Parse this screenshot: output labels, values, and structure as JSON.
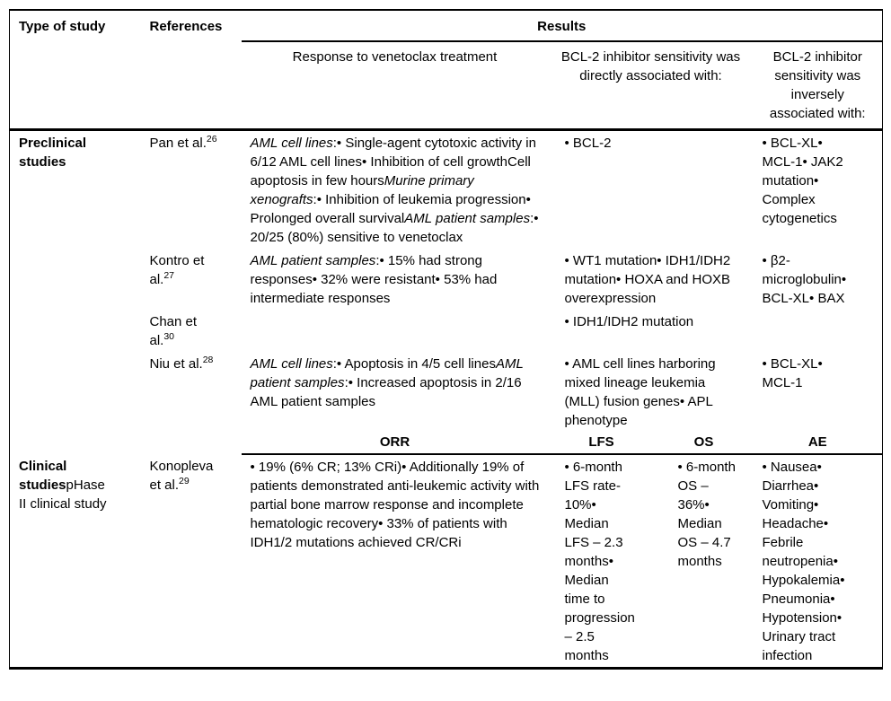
{
  "page": {
    "background_color": "#ffffff",
    "text_color": "#000000",
    "border_color": "#000000"
  },
  "table": {
    "header": {
      "type_of_study": "Type of study",
      "references": "References",
      "results": "Results",
      "response_col": "Response to venetoclax treatment",
      "direct_col": "BCL-2 inhibitor sensitivity was directly associated with:",
      "inverse_col": "BCL-2 inhibitor sensitivity was inversely associated with:"
    },
    "rows": [
      {
        "study": [
          {
            "t": "Preclinical studies",
            "b": true
          }
        ],
        "ref": {
          "text": "Pan et al.",
          "sup": "26"
        },
        "response": [
          {
            "t": "AML cell lines",
            "i": true
          },
          {
            "t": ":• Single-agent cytotoxic activity in 6/12 AML cell lines• Inhibition of cell growthCell apoptosis in few hours"
          },
          {
            "t": "Murine primary xenografts",
            "i": true
          },
          {
            "t": ":• Inhibition of leukemia progression• Prolonged overall survival"
          },
          {
            "t": "AML patient samples",
            "i": true
          },
          {
            "t": ":• 20/25 (80%) sensitive to venetoclax"
          }
        ],
        "direct": "• BCL-2",
        "inverse": "• BCL-XL• MCL-1• JAK2 mutation• Complex cytogenetics"
      },
      {
        "study": [],
        "ref": {
          "text": "Kontro et al.",
          "sup": "27"
        },
        "response": [
          {
            "t": "AML patient samples",
            "i": true
          },
          {
            "t": ":• 15% had strong responses• 32% were resistant• 53% had intermediate responses"
          }
        ],
        "direct": "• WT1 mutation• IDH1/IDH2 mutation• HOXA and HOXB overexpression",
        "inverse": "• β2-microglobulin• BCL-XL• BAX"
      },
      {
        "study": [],
        "ref": {
          "text": "Chan et al.",
          "sup": "30"
        },
        "response": [],
        "direct": "• IDH1/IDH2 mutation",
        "inverse": ""
      },
      {
        "study": [],
        "ref": {
          "text": "Niu et al.",
          "sup": "28"
        },
        "response": [
          {
            "t": "AML cell lines",
            "i": true
          },
          {
            "t": ":• Apoptosis in 4/5 cell lines"
          },
          {
            "t": "AML patient samples",
            "i": true
          },
          {
            "t": ":• Increased apoptosis in 2/16 AML patient samples"
          }
        ],
        "direct": "• AML cell lines harboring mixed lineage leukemia (MLL) fusion genes• APL phenotype",
        "inverse": "• BCL-XL• MCL-1"
      }
    ],
    "clinical_subheader": {
      "orr": "ORR",
      "lfs": "LFS",
      "os": "OS",
      "ae": "AE"
    },
    "clinical_row": {
      "study": [
        {
          "t": "Clinical studies",
          "b": true
        },
        {
          "t": "pHase II clinical study"
        }
      ],
      "ref": {
        "text": "Konopleva et al.",
        "sup": "29"
      },
      "orr": "• 19% (6% CR; 13% CRi)• Additionally 19% of patients demonstrated anti-leukemic activity with partial bone marrow response and incomplete hematologic recovery• 33% of patients with IDH1/2 mutations achieved CR/CRi",
      "lfs": "• 6-month LFS rate-10%• Median LFS – 2.3 months• Median time to progression – 2.5 months",
      "os": "• 6-month OS – 36%• Median OS – 4.7 months",
      "ae": "• Nausea• Diarrhea• Vomiting• Headache• Febrile neutropenia• Hypokalemia• Pneumonia• Hypotension• Urinary tract infection"
    }
  }
}
